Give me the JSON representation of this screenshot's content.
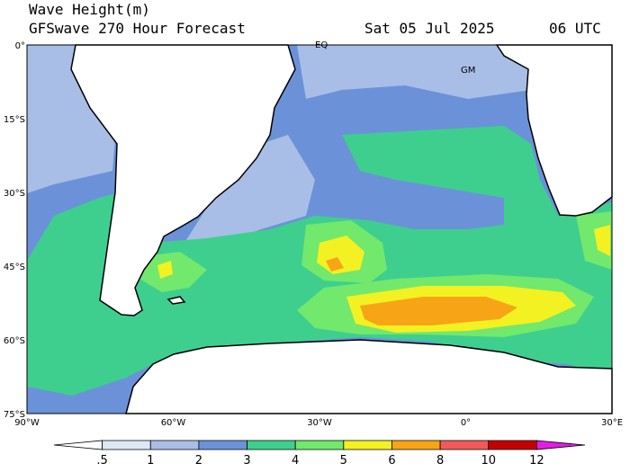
{
  "header": {
    "title": "Wave Height(m)",
    "subtitle": "GFSwave 270 Hour Forecast",
    "date": "Sat 05 Jul 2025",
    "time": "06 UTC"
  },
  "map": {
    "lat_labels": [
      "0°",
      "15°S",
      "30°S",
      "45°S",
      "60°S",
      "75°S"
    ],
    "lon_labels": [
      "90°W",
      "60°W",
      "30°W",
      "0°",
      "30°E"
    ],
    "annotations": [
      "EQ",
      "GM"
    ]
  },
  "colorbar": {
    "labels": [
      ".5",
      "1",
      "2",
      "3",
      "4",
      "5",
      "6",
      "8",
      "10",
      "12"
    ],
    "colors": [
      "#ffffff",
      "#dce8f6",
      "#a9bee6",
      "#6b92d8",
      "#3ecf8e",
      "#72e86c",
      "#f3f122",
      "#f7a516",
      "#f05a5a",
      "#c40000",
      "#e21ee2"
    ]
  }
}
